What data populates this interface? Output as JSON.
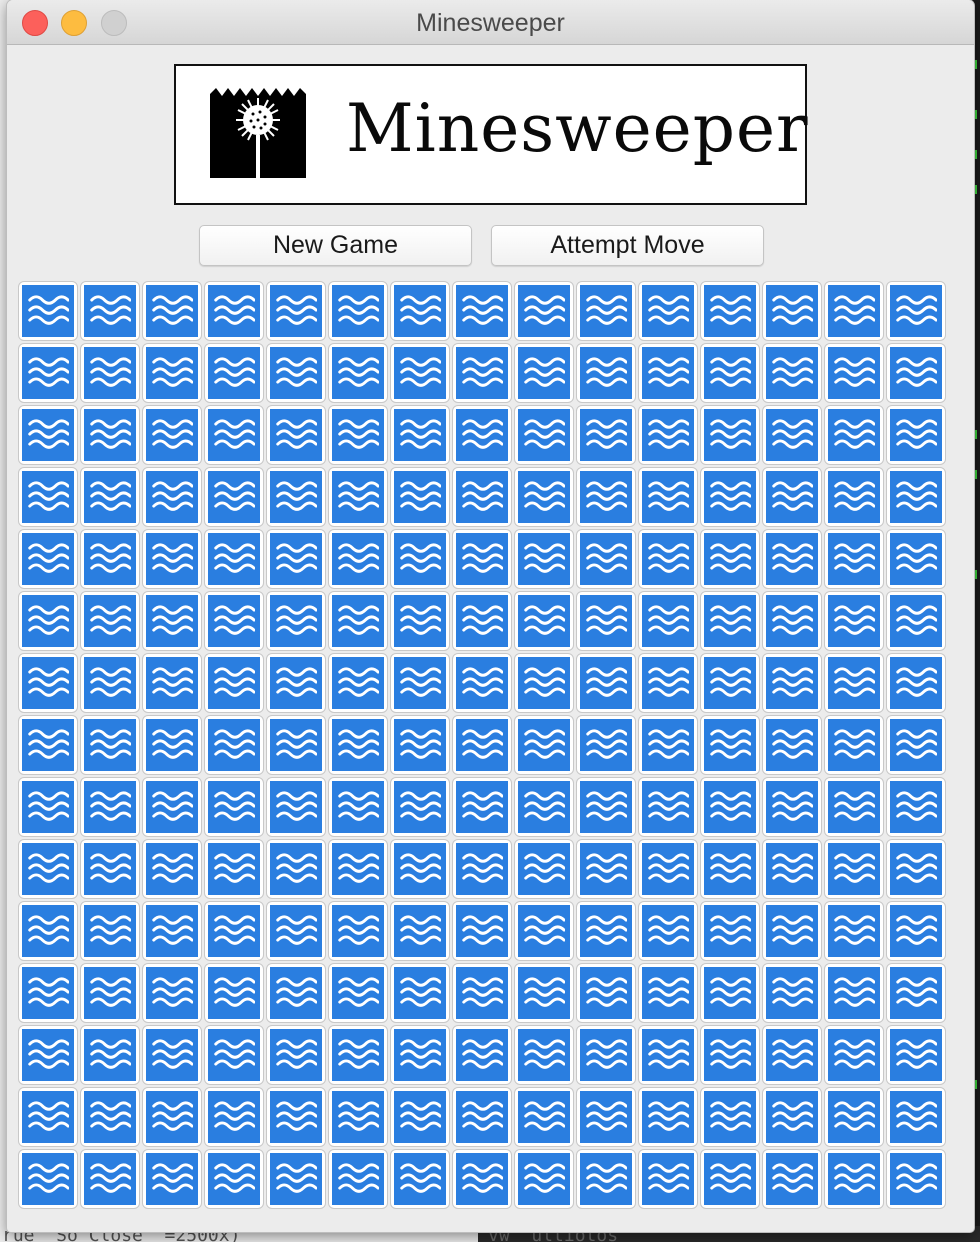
{
  "window": {
    "title": "Minesweeper"
  },
  "banner": {
    "title": "Minesweeper",
    "logo_icon": "sea-mine-logo-icon"
  },
  "buttons": {
    "new_game": "New Game",
    "attempt_move": "Attempt Move"
  },
  "board": {
    "rows": 15,
    "columns": 15,
    "cell_state": "unrevealed",
    "cell_icon": "water-waves-icon",
    "tile_color": "#2a7ee0"
  },
  "background": {
    "bottom_text": "rue  So Close  =2500x)",
    "bottom_right_text": "vw  ultiotos"
  },
  "colors": {
    "close": "#fc605b",
    "minimize": "#fdbc40",
    "zoom_disabled": "#d0d0d0"
  }
}
